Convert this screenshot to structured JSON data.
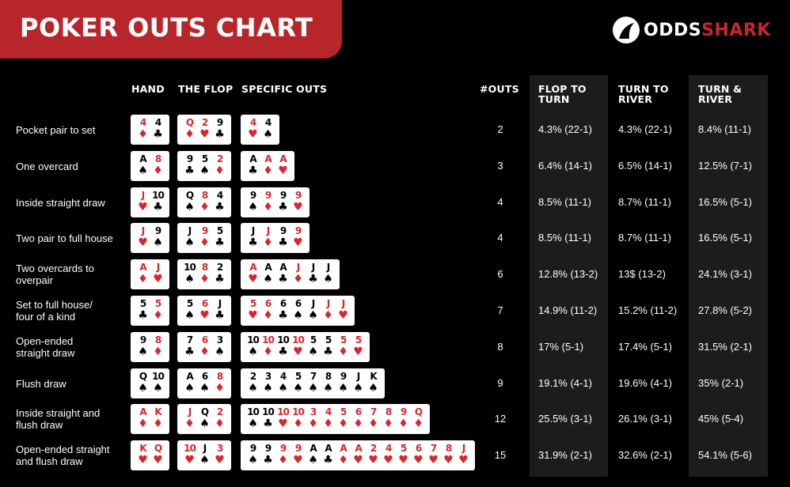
{
  "title": "POKER OUTS CHART",
  "logo": {
    "word1": "ODDS",
    "word2": "SHARK",
    "icon": "shark-fin-icon"
  },
  "colors": {
    "banner": "#b6262b",
    "red_suit": "#d8262e",
    "column_bg": "#1c1c1c"
  },
  "headers": {
    "hand": "HAND",
    "flop": "THE FLOP",
    "specific_outs": "SPECIFIC OUTS",
    "outs": "#OUTS",
    "flop_to_turn": [
      "FLOP TO",
      "TURN"
    ],
    "turn_to_river": [
      "TURN TO",
      "RIVER"
    ],
    "turn_and_river": [
      "TURN &",
      "RIVER"
    ]
  },
  "rows": [
    {
      "label": [
        "Pocket pair to set"
      ],
      "hand": [
        [
          "4",
          "d"
        ],
        [
          "4",
          "c"
        ]
      ],
      "flop": [
        [
          "Q",
          "d"
        ],
        [
          "2",
          "h"
        ],
        [
          "9",
          "c"
        ]
      ],
      "specific": [
        [
          "4",
          "h"
        ],
        [
          "4",
          "s"
        ]
      ],
      "outs": "2",
      "flop_to_turn": "4.3% (22-1)",
      "turn_to_river": "4.3% (22-1)",
      "turn_and_river": "8.4% (11-1)"
    },
    {
      "label": [
        "One overcard"
      ],
      "hand": [
        [
          "A",
          "s"
        ],
        [
          "8",
          "d"
        ]
      ],
      "flop": [
        [
          "9",
          "c"
        ],
        [
          "5",
          "s"
        ],
        [
          "2",
          "d"
        ]
      ],
      "specific": [
        [
          "A",
          "c"
        ],
        [
          "A",
          "d"
        ],
        [
          "A",
          "h"
        ]
      ],
      "outs": "3",
      "flop_to_turn": "6.4% (14-1)",
      "turn_to_river": "6.5% (14-1)",
      "turn_and_river": "12.5% (7-1)"
    },
    {
      "label": [
        "Inside straight draw"
      ],
      "hand": [
        [
          "J",
          "h"
        ],
        [
          "10",
          "c"
        ]
      ],
      "flop": [
        [
          "Q",
          "s"
        ],
        [
          "8",
          "d"
        ],
        [
          "4",
          "c"
        ]
      ],
      "specific": [
        [
          "9",
          "s"
        ],
        [
          "9",
          "d"
        ],
        [
          "9",
          "c"
        ],
        [
          "9",
          "h"
        ]
      ],
      "outs": "4",
      "flop_to_turn": "8.5% (11-1)",
      "turn_to_river": "8.7% (11-1)",
      "turn_and_river": "16.5% (5-1)"
    },
    {
      "label": [
        "Two pair to full house"
      ],
      "hand": [
        [
          "J",
          "h"
        ],
        [
          "9",
          "s"
        ]
      ],
      "flop": [
        [
          "J",
          "s"
        ],
        [
          "9",
          "d"
        ],
        [
          "5",
          "c"
        ]
      ],
      "specific": [
        [
          "J",
          "c"
        ],
        [
          "J",
          "d"
        ],
        [
          "9",
          "c"
        ],
        [
          "9",
          "h"
        ]
      ],
      "outs": "4",
      "flop_to_turn": "8.5% (11-1)",
      "turn_to_river": "8.7% (11-1)",
      "turn_and_river": "16.5% (5-1)"
    },
    {
      "label": [
        "Two overcards to",
        "overpair"
      ],
      "hand": [
        [
          "A",
          "d"
        ],
        [
          "J",
          "h"
        ]
      ],
      "flop": [
        [
          "10",
          "s"
        ],
        [
          "8",
          "d"
        ],
        [
          "2",
          "c"
        ]
      ],
      "specific": [
        [
          "A",
          "h"
        ],
        [
          "A",
          "s"
        ],
        [
          "A",
          "c"
        ],
        [
          "J",
          "d"
        ],
        [
          "J",
          "c"
        ],
        [
          "J",
          "s"
        ]
      ],
      "outs": "6",
      "flop_to_turn": "12.8% (13-2)",
      "turn_to_river": "13$ (13-2)",
      "turn_and_river": "24.1% (3-1)"
    },
    {
      "label": [
        "Set to full house/",
        "four of a kind"
      ],
      "hand": [
        [
          "5",
          "c"
        ],
        [
          "5",
          "d"
        ]
      ],
      "flop": [
        [
          "5",
          "s"
        ],
        [
          "6",
          "h"
        ],
        [
          "J",
          "c"
        ]
      ],
      "specific": [
        [
          "5",
          "h"
        ],
        [
          "6",
          "d"
        ],
        [
          "6",
          "c"
        ],
        [
          "6",
          "s"
        ],
        [
          "J",
          "s"
        ],
        [
          "J",
          "d"
        ],
        [
          "J",
          "h"
        ]
      ],
      "outs": "7",
      "flop_to_turn": "14.9% (11-2)",
      "turn_to_river": "15.2% (11-2)",
      "turn_and_river": "27.8% (5-2)"
    },
    {
      "label": [
        "Open-ended",
        "straight draw"
      ],
      "hand": [
        [
          "9",
          "s"
        ],
        [
          "8",
          "d"
        ]
      ],
      "flop": [
        [
          "7",
          "c"
        ],
        [
          "6",
          "d"
        ],
        [
          "3",
          "s"
        ]
      ],
      "specific": [
        [
          "10",
          "s"
        ],
        [
          "10",
          "d"
        ],
        [
          "10",
          "c"
        ],
        [
          "10",
          "h"
        ],
        [
          "5",
          "s"
        ],
        [
          "5",
          "c"
        ],
        [
          "5",
          "d"
        ],
        [
          "5",
          "h"
        ]
      ],
      "outs": "8",
      "flop_to_turn": "17% (5-1)",
      "turn_to_river": "17.4% (5-1)",
      "turn_and_river": "31.5% (2-1)"
    },
    {
      "label": [
        "Flush draw"
      ],
      "hand": [
        [
          "Q",
          "s"
        ],
        [
          "10",
          "s"
        ]
      ],
      "flop": [
        [
          "A",
          "s"
        ],
        [
          "6",
          "s"
        ],
        [
          "8",
          "d"
        ]
      ],
      "specific": [
        [
          "2",
          "s"
        ],
        [
          "3",
          "s"
        ],
        [
          "4",
          "s"
        ],
        [
          "5",
          "s"
        ],
        [
          "7",
          "s"
        ],
        [
          "8",
          "s"
        ],
        [
          "9",
          "s"
        ],
        [
          "J",
          "s"
        ],
        [
          "K",
          "s"
        ]
      ],
      "outs": "9",
      "flop_to_turn": "19.1% (4-1)",
      "turn_to_river": "19.6% (4-1)",
      "turn_and_river": "35% (2-1)"
    },
    {
      "label": [
        "Inside straight and",
        "flush draw"
      ],
      "hand": [
        [
          "A",
          "d"
        ],
        [
          "K",
          "d"
        ]
      ],
      "flop": [
        [
          "J",
          "d"
        ],
        [
          "Q",
          "s"
        ],
        [
          "2",
          "d"
        ]
      ],
      "specific": [
        [
          "10",
          "s"
        ],
        [
          "10",
          "c"
        ],
        [
          "10",
          "h"
        ],
        [
          "10",
          "d"
        ],
        [
          "3",
          "d"
        ],
        [
          "4",
          "d"
        ],
        [
          "5",
          "d"
        ],
        [
          "6",
          "d"
        ],
        [
          "7",
          "d"
        ],
        [
          "8",
          "d"
        ],
        [
          "9",
          "d"
        ],
        [
          "Q",
          "d"
        ]
      ],
      "outs": "12",
      "flop_to_turn": "25.5% (3-1)",
      "turn_to_river": "26.1% (3-1)",
      "turn_and_river": "45% (5-4)"
    },
    {
      "label": [
        "Open-ended straight",
        "and flush draw"
      ],
      "hand": [
        [
          "K",
          "h"
        ],
        [
          "Q",
          "h"
        ]
      ],
      "flop": [
        [
          "10",
          "h"
        ],
        [
          "J",
          "s"
        ],
        [
          "3",
          "h"
        ]
      ],
      "specific": [
        [
          "9",
          "s"
        ],
        [
          "9",
          "c"
        ],
        [
          "9",
          "d"
        ],
        [
          "9",
          "h"
        ],
        [
          "A",
          "s"
        ],
        [
          "A",
          "c"
        ],
        [
          "A",
          "d"
        ],
        [
          "A",
          "h"
        ],
        [
          "2",
          "h"
        ],
        [
          "4",
          "h"
        ],
        [
          "5",
          "h"
        ],
        [
          "6",
          "h"
        ],
        [
          "7",
          "h"
        ],
        [
          "8",
          "h"
        ],
        [
          "J",
          "h"
        ]
      ],
      "outs": "15",
      "flop_to_turn": "31.9% (2-1)",
      "turn_to_river": "32.6% (2-1)",
      "turn_and_river": "54.1% (5-6)"
    }
  ]
}
